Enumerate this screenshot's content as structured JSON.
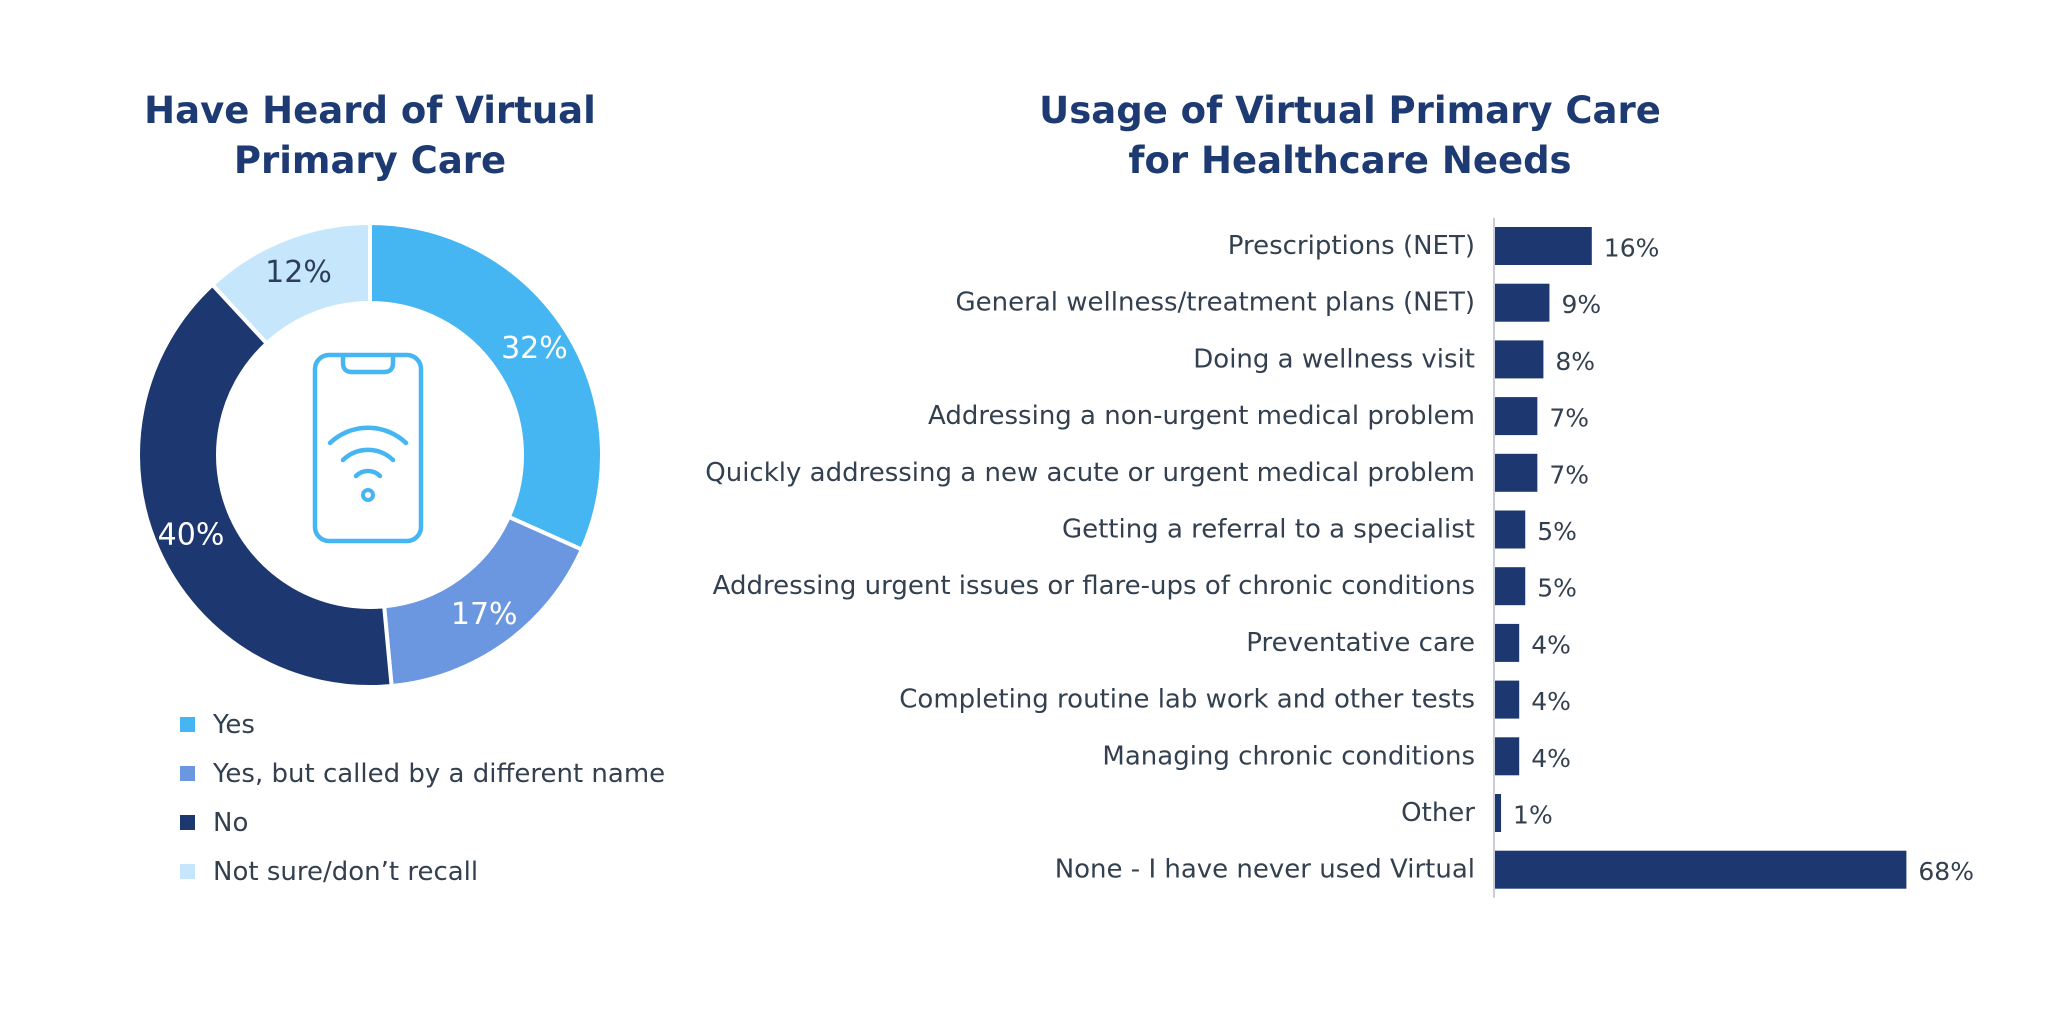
{
  "chart_data": [
    {
      "type": "pie",
      "variant": "donut",
      "title": [
        "Have Heard of Virtual",
        "Primary Care"
      ],
      "center_icon": "smartphone-wifi-icon",
      "slices": [
        {
          "name": "Yes",
          "value": 32,
          "label": "32%",
          "color": "#45b6f2"
        },
        {
          "name": "Yes, but called by a different name",
          "value": 17,
          "label": "17%",
          "color": "#6b97e0"
        },
        {
          "name": "No",
          "value": 40,
          "label": "40%",
          "color": "#1d3871"
        },
        {
          "name": "Not sure/don’t recall",
          "value": 12,
          "label": "12%",
          "color": "#c6e7fb"
        }
      ],
      "legend_position": "bottom-left",
      "icon_color": "#45b6f2"
    },
    {
      "type": "bar",
      "orientation": "horizontal",
      "title": [
        "Usage of Virtual Primary Care",
        "for Healthcare Needs"
      ],
      "categories": [
        "Prescriptions (NET)",
        "General wellness/treatment plans (NET)",
        "Doing a wellness visit",
        "Addressing a non-urgent medical problem",
        "Quickly addressing a new acute or urgent medical problem",
        "Getting a referral to a specialist",
        "Addressing urgent issues or flare-ups of chronic conditions",
        "Preventative care",
        "Completing routine lab work and other tests",
        "Managing chronic conditions",
        "Other",
        "None - I have never used Virtual"
      ],
      "values": [
        16,
        9,
        8,
        7,
        7,
        5,
        5,
        4,
        4,
        4,
        1,
        68
      ],
      "value_labels": [
        "16%",
        "9%",
        "8%",
        "7%",
        "7%",
        "5%",
        "5%",
        "4%",
        "4%",
        "4%",
        "1%",
        "68%"
      ],
      "bar_color": "#1d3871",
      "grid": false
    }
  ]
}
